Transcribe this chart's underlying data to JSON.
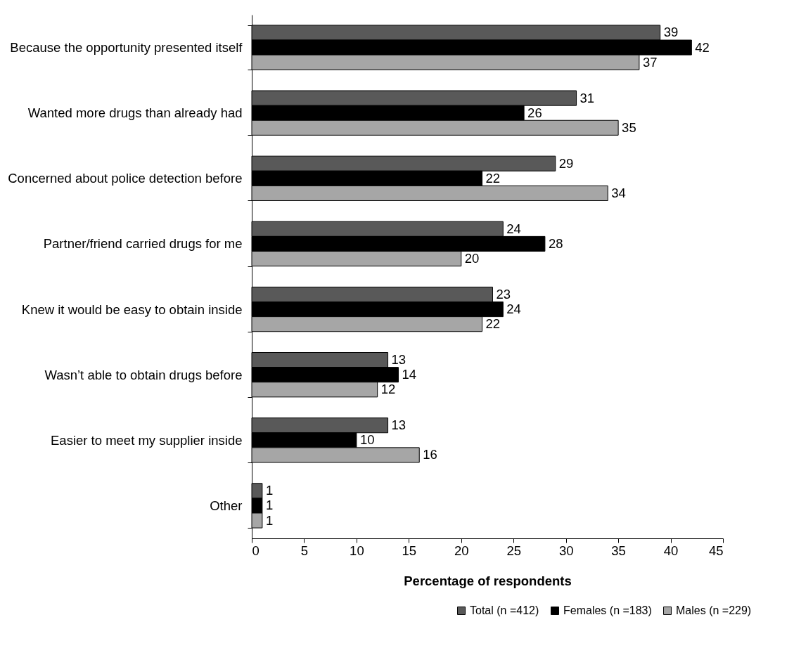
{
  "chart_data": {
    "type": "bar",
    "orientation": "horizontal",
    "xlabel": "Percentage of respondents",
    "categories": [
      "Because the opportunity presented itself",
      "Wanted more drugs than already had",
      "Concerned about police detection before",
      "Partner/friend carried drugs for me",
      "Knew it would be easy to obtain inside",
      "Wasn’t able to obtain drugs before",
      "Easier to meet my supplier inside",
      "Other"
    ],
    "series": [
      {
        "name": "Total (n =412)",
        "color": "#595959",
        "values": [
          39,
          31,
          29,
          24,
          23,
          13,
          13,
          1
        ]
      },
      {
        "name": "Females (n =183)",
        "color": "#000000",
        "values": [
          42,
          26,
          22,
          28,
          24,
          14,
          10,
          1
        ]
      },
      {
        "name": "Males (n =229)",
        "color": "#a6a6a6",
        "values": [
          37,
          35,
          34,
          20,
          22,
          12,
          16,
          1
        ]
      }
    ],
    "xlim": [
      0,
      45
    ],
    "xticks": [
      0,
      5,
      10,
      15,
      20,
      25,
      30,
      35,
      40,
      45
    ],
    "data_labels": true,
    "legend": "bottom right",
    "grid": false
  }
}
